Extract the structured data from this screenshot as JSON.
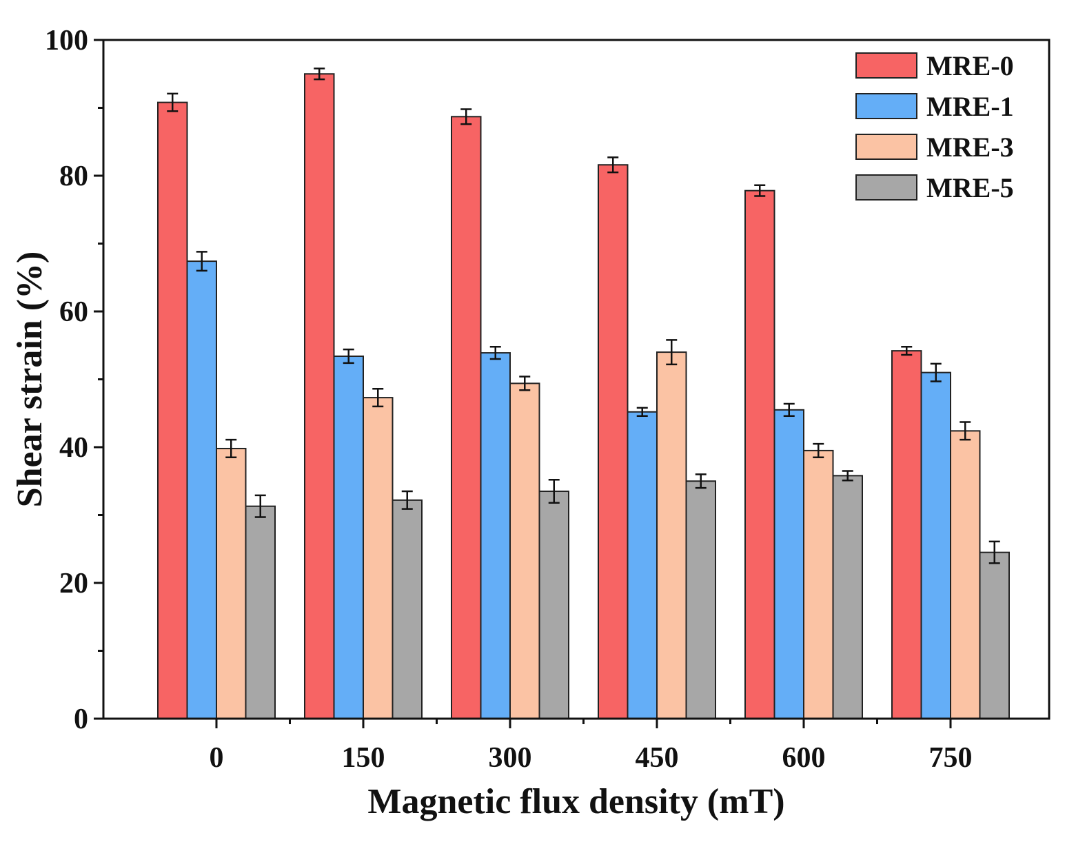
{
  "chart_data": {
    "type": "bar",
    "title": "",
    "xlabel": "Magnetic flux density (mT)",
    "ylabel": "Shear strain (%)",
    "categories": [
      "0",
      "150",
      "300",
      "450",
      "600",
      "750"
    ],
    "ylim": [
      0,
      100
    ],
    "yticks": [
      0,
      20,
      40,
      60,
      80,
      100
    ],
    "legend_position": "top-right",
    "series": [
      {
        "name": "MRE-0",
        "color": "#f76464",
        "values": [
          90.8,
          95.0,
          88.7,
          81.6,
          77.8,
          54.2
        ],
        "errors": [
          1.3,
          0.8,
          1.1,
          1.1,
          0.8,
          0.6
        ]
      },
      {
        "name": "MRE-1",
        "color": "#64aef7",
        "values": [
          67.4,
          53.4,
          53.9,
          45.2,
          45.5,
          51.0
        ],
        "errors": [
          1.4,
          1.0,
          0.9,
          0.6,
          0.9,
          1.3
        ]
      },
      {
        "name": "MRE-3",
        "color": "#fbc3a4",
        "values": [
          39.8,
          47.3,
          49.4,
          54.0,
          39.5,
          42.4
        ],
        "errors": [
          1.3,
          1.3,
          1.0,
          1.8,
          1.0,
          1.3
        ]
      },
      {
        "name": "MRE-5",
        "color": "#a7a7a7",
        "values": [
          31.3,
          32.2,
          33.5,
          35.0,
          35.8,
          24.5
        ],
        "errors": [
          1.6,
          1.3,
          1.7,
          1.0,
          0.7,
          1.6
        ]
      }
    ]
  }
}
